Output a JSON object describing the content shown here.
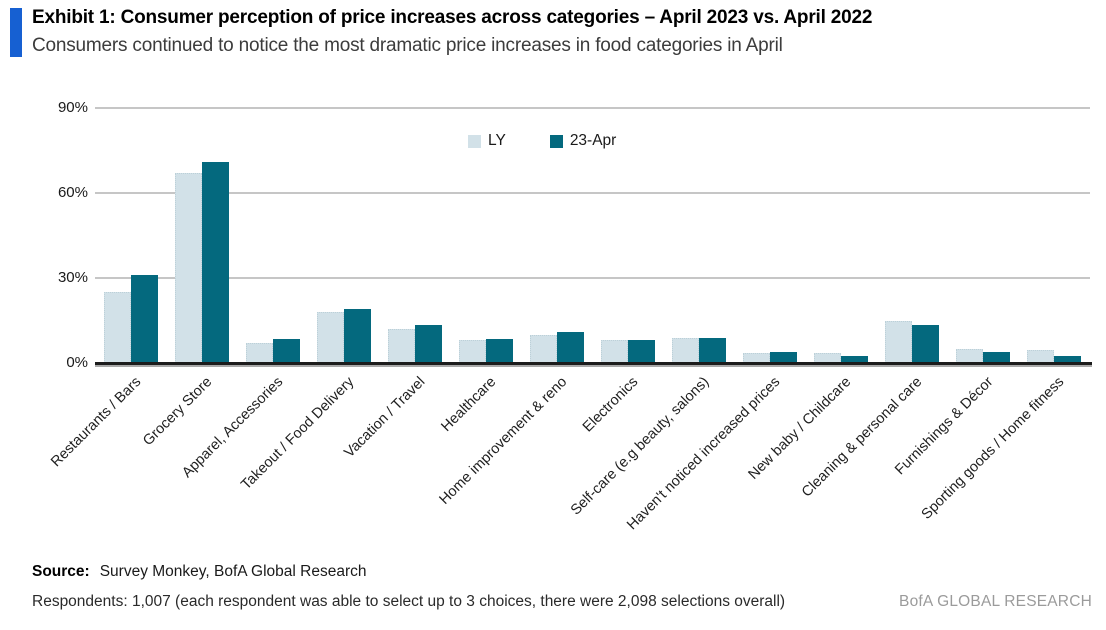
{
  "header": {
    "exhibit_title": "Exhibit 1:  Consumer perception of price increases across categories – April 2023 vs. April 2022",
    "subtitle": "Consumers continued to notice the most dramatic price increases in food categories in April"
  },
  "chart_data": {
    "type": "bar",
    "title": "Exhibit 1: Consumer perception of price increases across categories – April 2023 vs. April 2022",
    "categories": [
      "Restaurants / Bars",
      "Grocery Store",
      "Apparel, Accessories",
      "Takeout / Food Delivery",
      "Vacation / Travel",
      "Healthcare",
      "Home improvement & reno",
      "Electronics",
      "Self-care (e.g beauty, salons)",
      "Haven't noticed increased prices",
      "New baby / Childcare",
      "Cleaning & personal care",
      "Furnishings & Décor",
      "Sporting goods / Home fitness"
    ],
    "series": [
      {
        "name": "LY",
        "color": "#d2e1e8",
        "values": [
          25,
          67,
          7,
          18,
          12,
          8,
          10,
          8,
          9,
          3.5,
          3.5,
          15,
          5,
          4.5
        ]
      },
      {
        "name": "23-Apr",
        "color": "#04697e",
        "values": [
          31,
          71,
          8.5,
          19,
          13.5,
          8.5,
          11,
          8,
          9,
          4,
          2.5,
          13.5,
          4,
          2.5
        ]
      }
    ],
    "xlabel": "",
    "ylabel": "",
    "ylim": [
      0,
      90
    ],
    "ytick_values": [
      0,
      30,
      60,
      90
    ],
    "ytick_labels": [
      "0%",
      "30%",
      "60%",
      "90%"
    ],
    "grid": true,
    "legend_position": "top-center"
  },
  "footer": {
    "source_label": "Source:",
    "source_text": "Survey Monkey, BofA Global Research",
    "respondents_text": "Respondents:  1,007  (each respondent  was able to select up to 3 choices,  there were 2,098  selections  overall)",
    "brand_text": "BofA GLOBAL RESEARCH"
  },
  "colors": {
    "accent_blue": "#1660d2",
    "ly_bar": "#d2e1e8",
    "apr_bar": "#04697e",
    "gridline": "#c6c6c6",
    "axis": "#1c1c1c",
    "brand_gray": "#9b9b9b",
    "subtitle_gray": "#3c3c3c"
  }
}
